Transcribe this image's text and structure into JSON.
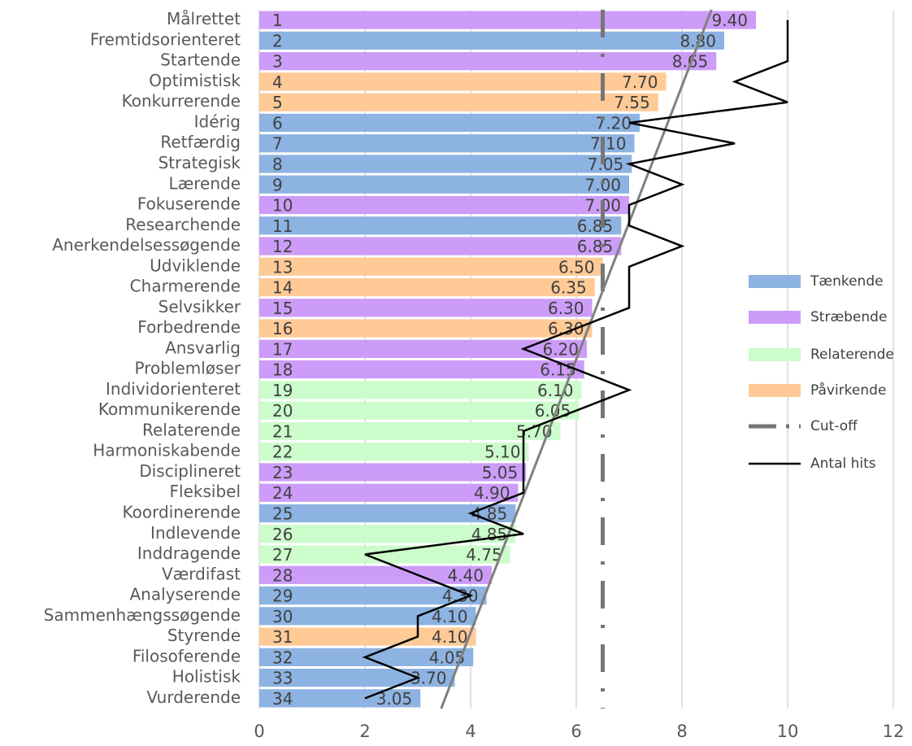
{
  "chart_data": {
    "type": "bar",
    "orientation": "horizontal",
    "categories": [
      "Målrettet",
      "Fremtidsorienteret",
      "Startende",
      "Optimistisk",
      "Konkurrerende",
      "Idérig",
      "Retfærdig",
      "Strategisk",
      "Lærende",
      "Fokuserende",
      "Researchende",
      "Anerkendelsessøgende",
      "Udviklende",
      "Charmerende",
      "Selvsikker",
      "Forbedrende",
      "Ansvarlig",
      "Problemløser",
      "Individorienteret",
      "Kommunikerende",
      "Relaterende",
      "Harmoniskabende",
      "Disciplineret",
      "Fleksibel",
      "Koordinerende",
      "Indlevende",
      "Inddragende",
      "Værdifast",
      "Analyserende",
      "Sammenhængssøgende",
      "Styrende",
      "Filosoferende",
      "Holistisk",
      "Vurderende"
    ],
    "ranks": [
      1,
      2,
      3,
      4,
      5,
      6,
      7,
      8,
      9,
      10,
      11,
      12,
      13,
      14,
      15,
      16,
      17,
      18,
      19,
      20,
      21,
      22,
      23,
      24,
      25,
      26,
      27,
      28,
      29,
      30,
      31,
      32,
      33,
      34
    ],
    "series": [
      {
        "name": "Tænkende",
        "color": "#8db3e2",
        "values": [
          null,
          8.8,
          null,
          null,
          null,
          7.2,
          7.1,
          7.05,
          7,
          null,
          6.85,
          null,
          null,
          null,
          null,
          null,
          null,
          null,
          null,
          null,
          null,
          null,
          null,
          null,
          4.85,
          null,
          null,
          null,
          4.3,
          4.1,
          null,
          4.05,
          3.7,
          3.05
        ],
        "value_labels": [
          null,
          "8.80",
          null,
          null,
          null,
          "7.20",
          "7.10",
          "7.05",
          "7.00",
          null,
          "6.85",
          null,
          null,
          null,
          null,
          null,
          null,
          null,
          null,
          null,
          null,
          null,
          null,
          null,
          "4.85",
          null,
          null,
          null,
          "4.30",
          "4.10",
          null,
          "4.05",
          "3.70",
          "3.05"
        ]
      },
      {
        "name": "Stræbende",
        "color": "#cc9cf8",
        "values": [
          9.4,
          null,
          8.65,
          null,
          null,
          null,
          null,
          null,
          null,
          7,
          null,
          6.85,
          null,
          null,
          6.3,
          null,
          6.2,
          6.15,
          null,
          null,
          null,
          null,
          5.05,
          4.9,
          null,
          null,
          null,
          4.4,
          null,
          null,
          null,
          null,
          null,
          null
        ],
        "value_labels": [
          "9.40",
          null,
          "8.65",
          null,
          null,
          null,
          null,
          null,
          null,
          "7.00",
          null,
          "6.85",
          null,
          null,
          "6.30",
          null,
          "6.20",
          "6.15",
          null,
          null,
          null,
          null,
          "5.05",
          "4.90",
          null,
          null,
          null,
          "4.40",
          null,
          null,
          null,
          null,
          null,
          null
        ]
      },
      {
        "name": "Relaterende",
        "color": "#ccfccc",
        "values": [
          null,
          null,
          null,
          null,
          null,
          null,
          null,
          null,
          null,
          null,
          null,
          null,
          null,
          null,
          null,
          null,
          null,
          null,
          6.1,
          6.05,
          5.7,
          5.1,
          null,
          null,
          null,
          4.85,
          4.75,
          null,
          null,
          null,
          null,
          null,
          null,
          null
        ],
        "value_labels": [
          null,
          null,
          null,
          null,
          null,
          null,
          null,
          null,
          null,
          null,
          null,
          null,
          null,
          null,
          null,
          null,
          null,
          null,
          "6.10",
          "6.05",
          "5.70",
          "5.10",
          null,
          null,
          null,
          "4.85",
          "4.75",
          null,
          null,
          null,
          null,
          null,
          null,
          null
        ]
      },
      {
        "name": "Påvirkende",
        "color": "#ffca96",
        "values": [
          null,
          null,
          null,
          7.7,
          7.55,
          null,
          null,
          null,
          null,
          null,
          null,
          null,
          6.5,
          6.35,
          null,
          6.3,
          null,
          null,
          null,
          null,
          null,
          null,
          null,
          null,
          null,
          null,
          null,
          null,
          null,
          null,
          4.1,
          null,
          null,
          null
        ],
        "value_labels": [
          null,
          null,
          null,
          "7.70",
          "7.55",
          null,
          null,
          null,
          null,
          null,
          null,
          null,
          "6.50",
          "6.35",
          null,
          "6.30",
          null,
          null,
          null,
          null,
          null,
          null,
          null,
          null,
          null,
          null,
          null,
          null,
          null,
          null,
          "4.10",
          null,
          null,
          null
        ]
      }
    ],
    "cutoff": {
      "name": "Cut-off",
      "value": 6.5,
      "color": "#767676"
    },
    "hits": {
      "name": "Antal hits",
      "color": "#000000",
      "values": [
        10,
        10,
        10,
        9,
        10,
        7,
        9,
        7,
        8,
        7,
        7,
        8,
        7,
        7,
        7,
        6,
        5,
        6,
        7,
        6,
        5,
        5,
        5,
        5,
        4,
        5,
        2,
        3,
        4,
        3,
        3,
        2,
        3,
        2
      ]
    },
    "xlim": [
      0,
      12
    ],
    "xticks": [
      0,
      2,
      4,
      6,
      8,
      10,
      12
    ],
    "grid": true,
    "trendline": true,
    "legend": "right"
  }
}
